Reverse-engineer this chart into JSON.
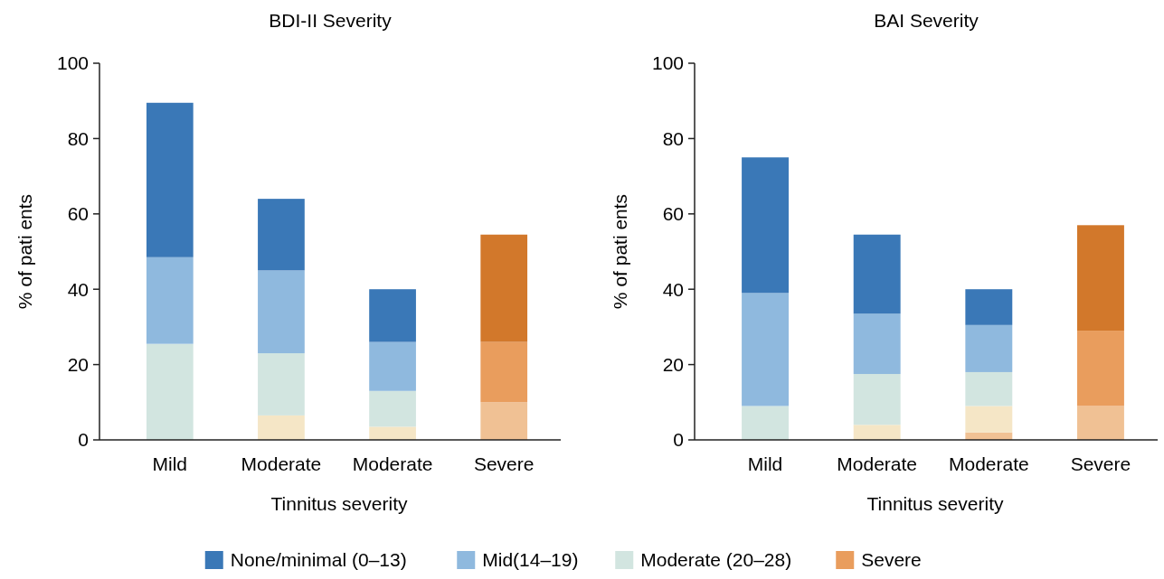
{
  "chart_data": [
    {
      "type": "bar",
      "title": "BDI-II Severity",
      "xlabel": "Tinnitus severity",
      "ylabel": "% of pati ents",
      "categories": [
        "Mild",
        "Moderate",
        "Moderate",
        "Severe"
      ],
      "stacked": true,
      "ylim": [
        0,
        100
      ],
      "yticks": [
        0,
        20,
        40,
        60,
        80,
        100
      ],
      "grid": false,
      "legend": "bottom",
      "series": [
        {
          "color": "#f0c194",
          "values": [
            0,
            0,
            0,
            10
          ]
        },
        {
          "color": "#f5e6c6",
          "values": [
            0,
            6.5,
            3.5,
            0
          ]
        },
        {
          "name": "Moderate (20–28)",
          "color": "#d2e5e0",
          "values": [
            25.5,
            16.5,
            9.5,
            0
          ]
        },
        {
          "name": "Mid(14–19)",
          "color": "#8fb9de",
          "values": [
            23,
            22,
            13,
            0
          ]
        },
        {
          "name": "None/minimal (0–13)",
          "color": "#3a78b7",
          "values": [
            41,
            19,
            14,
            0
          ]
        },
        {
          "name": "Severe",
          "color": "#e99d5d",
          "values": [
            0,
            0,
            0,
            16
          ]
        },
        {
          "color": "#d2782b",
          "values": [
            0,
            0,
            0,
            28.5
          ]
        }
      ]
    },
    {
      "type": "bar",
      "title": "BAI Severity",
      "xlabel": "Tinnitus severity",
      "ylabel": "% of pati ents",
      "categories": [
        "Mild",
        "Moderate",
        "Moderate",
        "Severe"
      ],
      "stacked": true,
      "ylim": [
        0,
        100
      ],
      "yticks": [
        0,
        20,
        40,
        60,
        80,
        100
      ],
      "grid": false,
      "series": [
        {
          "color": "#f0c194",
          "values": [
            0,
            0,
            2,
            9
          ]
        },
        {
          "color": "#f5e6c6",
          "values": [
            0,
            4,
            7,
            0
          ]
        },
        {
          "color": "#d2e5e0",
          "values": [
            9,
            13.5,
            9,
            0
          ]
        },
        {
          "color": "#8fb9de",
          "values": [
            30,
            16,
            12.5,
            0
          ]
        },
        {
          "color": "#3a78b7",
          "values": [
            36,
            21,
            9.5,
            0
          ]
        },
        {
          "color": "#e99d5d",
          "values": [
            0,
            0,
            0,
            20
          ]
        },
        {
          "color": "#d2782b",
          "values": [
            0,
            0,
            0,
            28
          ]
        }
      ]
    }
  ]
}
